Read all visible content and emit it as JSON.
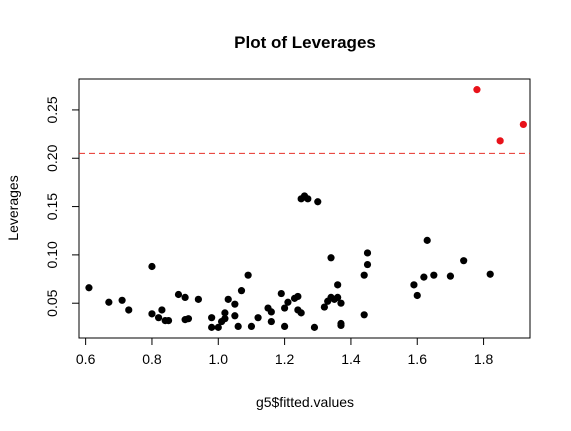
{
  "chart_data": {
    "type": "scatter",
    "title": "Plot of Leverages",
    "xlabel": "g5$fitted.values",
    "ylabel": "Leverages",
    "xlim": [
      0.58,
      1.94
    ],
    "ylim": [
      0.014,
      0.282
    ],
    "x_ticks": [
      0.6,
      0.8,
      1.0,
      1.2,
      1.4,
      1.6,
      1.8
    ],
    "x_tick_labels": [
      "0.6",
      "0.8",
      "1.0",
      "1.2",
      "1.4",
      "1.6",
      "1.8"
    ],
    "y_ticks": [
      0.05,
      0.1,
      0.15,
      0.2,
      0.25
    ],
    "y_tick_labels": [
      "0.05",
      "0.10",
      "0.15",
      "0.20",
      "0.25"
    ],
    "grid": false,
    "threshold_line": {
      "y": 0.2051,
      "color": "#e8302a",
      "style": "dashed"
    },
    "colors": {
      "normal_point": "#000000",
      "high_leverage_point": "#e8121a",
      "axis": "#000000"
    },
    "series": [
      {
        "color": "#000000",
        "points": [
          [
            0.61,
            0.066
          ],
          [
            0.67,
            0.051
          ],
          [
            0.71,
            0.053
          ],
          [
            0.73,
            0.043
          ],
          [
            0.8,
            0.088
          ],
          [
            0.8,
            0.039
          ],
          [
            0.82,
            0.035
          ],
          [
            0.83,
            0.043
          ],
          [
            0.84,
            0.032
          ],
          [
            0.85,
            0.032
          ],
          [
            0.88,
            0.059
          ],
          [
            0.9,
            0.056
          ],
          [
            0.9,
            0.033
          ],
          [
            0.91,
            0.034
          ],
          [
            0.94,
            0.054
          ],
          [
            0.98,
            0.035
          ],
          [
            0.98,
            0.025
          ],
          [
            1.0,
            0.025
          ],
          [
            1.01,
            0.031
          ],
          [
            1.02,
            0.04
          ],
          [
            1.02,
            0.034
          ],
          [
            1.03,
            0.054
          ],
          [
            1.05,
            0.049
          ],
          [
            1.05,
            0.037
          ],
          [
            1.06,
            0.026
          ],
          [
            1.07,
            0.063
          ],
          [
            1.09,
            0.079
          ],
          [
            1.1,
            0.026
          ],
          [
            1.12,
            0.035
          ],
          [
            1.15,
            0.045
          ],
          [
            1.16,
            0.041
          ],
          [
            1.16,
            0.031
          ],
          [
            1.19,
            0.06
          ],
          [
            1.2,
            0.045
          ],
          [
            1.2,
            0.026
          ],
          [
            1.21,
            0.051
          ],
          [
            1.23,
            0.055
          ],
          [
            1.24,
            0.057
          ],
          [
            1.24,
            0.043
          ],
          [
            1.25,
            0.04
          ],
          [
            1.25,
            0.158
          ],
          [
            1.26,
            0.161
          ],
          [
            1.27,
            0.158
          ],
          [
            1.29,
            0.025
          ],
          [
            1.3,
            0.155
          ],
          [
            1.32,
            0.046
          ],
          [
            1.33,
            0.052
          ],
          [
            1.34,
            0.056
          ],
          [
            1.34,
            0.097
          ],
          [
            1.35,
            0.054
          ],
          [
            1.36,
            0.056
          ],
          [
            1.36,
            0.069
          ],
          [
            1.37,
            0.05
          ],
          [
            1.37,
            0.029
          ],
          [
            1.37,
            0.027
          ],
          [
            1.44,
            0.038
          ],
          [
            1.44,
            0.079
          ],
          [
            1.45,
            0.102
          ],
          [
            1.45,
            0.09
          ],
          [
            1.59,
            0.069
          ],
          [
            1.6,
            0.058
          ],
          [
            1.62,
            0.077
          ],
          [
            1.63,
            0.115
          ],
          [
            1.65,
            0.079
          ],
          [
            1.7,
            0.078
          ],
          [
            1.74,
            0.094
          ],
          [
            1.82,
            0.08
          ]
        ]
      },
      {
        "color": "#e8121a",
        "points": [
          [
            1.78,
            0.271
          ],
          [
            1.85,
            0.218
          ],
          [
            1.92,
            0.235
          ]
        ]
      }
    ]
  }
}
